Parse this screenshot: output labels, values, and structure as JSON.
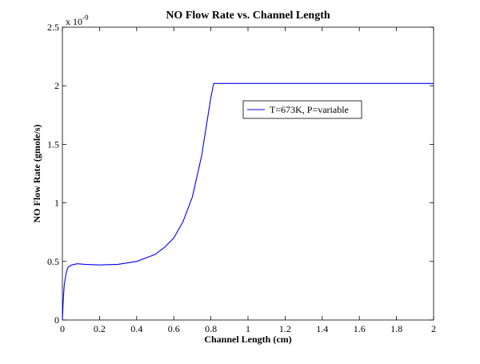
{
  "chart_data": {
    "type": "line",
    "title": "NO Flow Rate vs. Channel Length",
    "xlabel": "Channel Length (cm)",
    "ylabel": "NO Flow Rate (gmole/s)",
    "y_exponent_label": "x 10",
    "y_exponent_power": "-9",
    "xlim": [
      0,
      2
    ],
    "ylim": [
      0,
      2.5
    ],
    "x_ticks": [
      0,
      0.2,
      0.4,
      0.6,
      0.8,
      1,
      1.2,
      1.4,
      1.6,
      1.8,
      2
    ],
    "x_tick_labels": [
      "0",
      "0.2",
      "0.4",
      "0.6",
      "0.8",
      "1",
      "1.2",
      "1.4",
      "1.6",
      "1.8",
      "2"
    ],
    "y_ticks": [
      0,
      0.5,
      1,
      1.5,
      2,
      2.5
    ],
    "y_tick_labels": [
      "0",
      "0.5",
      "1",
      "1.5",
      "2",
      "2.5"
    ],
    "grid": false,
    "legend_position": "upper-middle",
    "line_color": "#0000ff",
    "series": [
      {
        "name": "T=673K, P=variable",
        "x": [
          0,
          0.005,
          0.01,
          0.02,
          0.03,
          0.05,
          0.08,
          0.12,
          0.2,
          0.3,
          0.4,
          0.5,
          0.55,
          0.6,
          0.65,
          0.7,
          0.75,
          0.78,
          0.8,
          0.815,
          0.85,
          1.0,
          1.2,
          1.4,
          1.6,
          1.8,
          2.0
        ],
        "y": [
          0.0,
          0.18,
          0.3,
          0.4,
          0.45,
          0.47,
          0.48,
          0.475,
          0.47,
          0.475,
          0.5,
          0.56,
          0.62,
          0.7,
          0.84,
          1.05,
          1.4,
          1.7,
          1.9,
          2.02,
          2.02,
          2.02,
          2.02,
          2.02,
          2.02,
          2.02,
          2.02
        ]
      }
    ]
  }
}
